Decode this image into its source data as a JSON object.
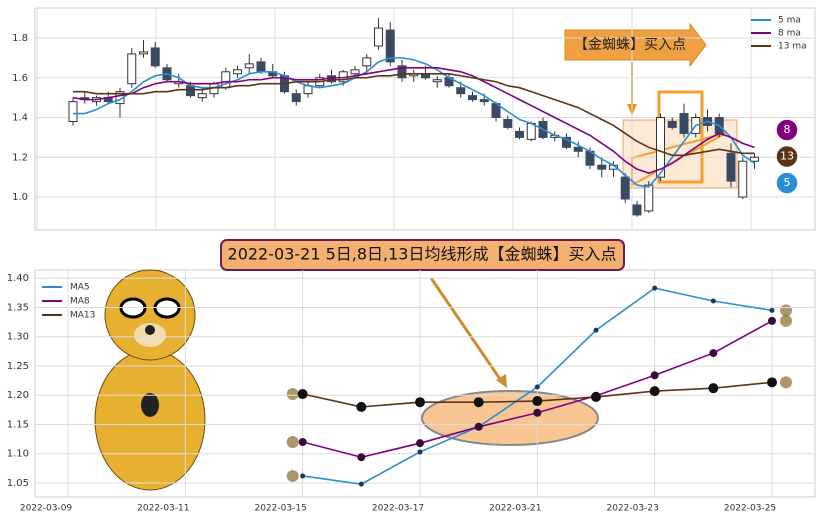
{
  "chart_data": [
    {
      "type": "candlestick",
      "open": [
        1.38,
        1.5,
        1.48,
        1.5,
        1.47,
        1.57,
        1.72,
        1.75,
        1.65,
        1.57,
        1.56,
        1.5,
        1.52,
        1.55,
        1.62,
        1.65,
        1.68,
        1.63,
        1.61,
        1.52,
        1.52,
        1.56,
        1.61,
        1.58,
        1.62,
        1.66,
        1.76,
        1.84,
        1.66,
        1.61,
        1.62,
        1.58,
        1.6,
        1.55,
        1.51,
        1.49,
        1.47,
        1.39,
        1.33,
        1.29,
        1.38,
        1.3,
        1.3,
        1.25,
        1.23,
        1.16,
        1.14,
        1.1,
        0.96,
        0.93,
        1.1,
        1.38,
        1.42,
        1.32,
        1.4,
        1.4,
        1.22,
        1.0,
        1.18
      ],
      "high": [
        1.5,
        1.53,
        1.51,
        1.53,
        1.55,
        1.75,
        1.79,
        1.78,
        1.67,
        1.62,
        1.58,
        1.55,
        1.58,
        1.65,
        1.66,
        1.72,
        1.7,
        1.67,
        1.63,
        1.54,
        1.58,
        1.62,
        1.64,
        1.64,
        1.66,
        1.72,
        1.9,
        1.88,
        1.69,
        1.64,
        1.66,
        1.61,
        1.62,
        1.58,
        1.53,
        1.52,
        1.48,
        1.41,
        1.35,
        1.38,
        1.4,
        1.33,
        1.32,
        1.28,
        1.25,
        1.2,
        1.18,
        1.12,
        0.98,
        1.08,
        1.42,
        1.4,
        1.47,
        1.42,
        1.44,
        1.42,
        1.27,
        1.2,
        1.22
      ],
      "low": [
        1.36,
        1.47,
        1.46,
        1.47,
        1.4,
        1.55,
        1.7,
        1.65,
        1.58,
        1.55,
        1.5,
        1.48,
        1.5,
        1.54,
        1.6,
        1.62,
        1.62,
        1.6,
        1.52,
        1.46,
        1.5,
        1.55,
        1.57,
        1.56,
        1.6,
        1.62,
        1.74,
        1.66,
        1.58,
        1.58,
        1.59,
        1.55,
        1.55,
        1.5,
        1.48,
        1.46,
        1.38,
        1.34,
        1.29,
        1.28,
        1.29,
        1.28,
        1.24,
        1.2,
        1.14,
        1.1,
        1.1,
        0.97,
        0.9,
        0.92,
        1.08,
        1.34,
        1.3,
        1.3,
        1.33,
        1.3,
        1.05,
        0.99,
        1.14
      ],
      "close": [
        1.48,
        1.49,
        1.5,
        1.48,
        1.53,
        1.72,
        1.73,
        1.66,
        1.59,
        1.58,
        1.51,
        1.52,
        1.57,
        1.63,
        1.64,
        1.67,
        1.63,
        1.61,
        1.53,
        1.48,
        1.56,
        1.6,
        1.58,
        1.63,
        1.64,
        1.7,
        1.85,
        1.68,
        1.6,
        1.62,
        1.6,
        1.59,
        1.56,
        1.52,
        1.49,
        1.48,
        1.4,
        1.35,
        1.3,
        1.37,
        1.3,
        1.31,
        1.25,
        1.23,
        1.16,
        1.14,
        1.16,
        0.99,
        0.91,
        1.06,
        1.4,
        1.35,
        1.32,
        1.4,
        1.36,
        1.32,
        1.08,
        1.18,
        1.2
      ],
      "up_color": "#ffffff",
      "down_color": "#3b4a63",
      "series": [
        {
          "name": "5 ma",
          "color": "#2a8fd0",
          "values": [
            1.42,
            1.42,
            1.44,
            1.47,
            1.49,
            1.53,
            1.58,
            1.61,
            1.62,
            1.6,
            1.56,
            1.55,
            1.55,
            1.57,
            1.59,
            1.62,
            1.63,
            1.63,
            1.61,
            1.58,
            1.56,
            1.55,
            1.56,
            1.57,
            1.6,
            1.63,
            1.68,
            1.7,
            1.7,
            1.69,
            1.67,
            1.64,
            1.6,
            1.57,
            1.54,
            1.51,
            1.47,
            1.43,
            1.39,
            1.37,
            1.34,
            1.31,
            1.29,
            1.26,
            1.23,
            1.19,
            1.16,
            1.11,
            1.06,
            1.05,
            1.12,
            1.2,
            1.28,
            1.36,
            1.38,
            1.36,
            1.3,
            1.21,
            1.17
          ]
        },
        {
          "name": "8 ma",
          "color": "#800080",
          "values": [
            1.5,
            1.49,
            1.49,
            1.5,
            1.51,
            1.52,
            1.55,
            1.57,
            1.58,
            1.58,
            1.57,
            1.57,
            1.57,
            1.58,
            1.58,
            1.59,
            1.59,
            1.6,
            1.6,
            1.59,
            1.59,
            1.59,
            1.6,
            1.6,
            1.61,
            1.62,
            1.63,
            1.64,
            1.65,
            1.65,
            1.65,
            1.65,
            1.64,
            1.63,
            1.61,
            1.58,
            1.55,
            1.52,
            1.49,
            1.46,
            1.43,
            1.4,
            1.37,
            1.34,
            1.31,
            1.27,
            1.23,
            1.18,
            1.14,
            1.12,
            1.14,
            1.17,
            1.21,
            1.25,
            1.29,
            1.32,
            1.3,
            1.27,
            1.25
          ]
        },
        {
          "name": "13 ma",
          "color": "#5b3418",
          "values": [
            1.53,
            1.53,
            1.52,
            1.52,
            1.52,
            1.52,
            1.52,
            1.53,
            1.53,
            1.54,
            1.54,
            1.54,
            1.55,
            1.55,
            1.56,
            1.56,
            1.57,
            1.57,
            1.57,
            1.58,
            1.58,
            1.58,
            1.59,
            1.59,
            1.6,
            1.6,
            1.61,
            1.61,
            1.62,
            1.62,
            1.62,
            1.62,
            1.62,
            1.61,
            1.6,
            1.59,
            1.58,
            1.56,
            1.55,
            1.53,
            1.51,
            1.49,
            1.47,
            1.45,
            1.42,
            1.39,
            1.36,
            1.32,
            1.28,
            1.25,
            1.23,
            1.21,
            1.21,
            1.22,
            1.23,
            1.24,
            1.23,
            1.22,
            1.22
          ]
        }
      ],
      "ylim": [
        0.834,
        1.951
      ],
      "yticks": [
        {
          "value": 1,
          "label": "1.0"
        },
        1.2,
        1.4,
        1.6,
        1.8
      ],
      "grid": true,
      "legend": "upper right",
      "annotation": "【金蜘蛛】买入点",
      "badges": [
        "8",
        "13",
        "5"
      ]
    },
    {
      "type": "line",
      "x": [
        "2022-03-15",
        "2022-03-16",
        "2022-03-17",
        "2022-03-18",
        "2022-03-21",
        "2022-03-22",
        "2022-03-23",
        "2022-03-24",
        "2022-03-25"
      ],
      "series": [
        {
          "name": "MA5",
          "color": "#2a8fd0",
          "values": [
            1.062,
            1.048,
            1.103,
            1.146,
            1.214,
            1.311,
            1.383,
            1.361,
            1.345
          ]
        },
        {
          "name": "MA8",
          "color": "#800080",
          "values": [
            1.12,
            1.094,
            1.118,
            1.146,
            1.17,
            1.199,
            1.234,
            1.272,
            1.327
          ]
        },
        {
          "name": "MA13",
          "color": "#5b3418",
          "values": [
            1.202,
            1.18,
            1.188,
            1.188,
            1.19,
            1.197,
            1.207,
            1.212,
            1.222
          ]
        }
      ],
      "xlim": [
        "2022-03-09",
        "2022-03-25"
      ],
      "xticks": [
        "2022-03-09",
        "2022-03-11",
        "2022-03-15",
        "2022-03-17",
        "2022-03-21",
        "2022-03-23",
        "2022-03-25"
      ],
      "ylim": [
        1.026,
        1.414
      ],
      "yticks": [
        {
          "value": 1.4,
          "label": "1.40"
        },
        1.35,
        {
          "value": 1.3,
          "label": "1.30"
        },
        1.25,
        {
          "value": 1.2,
          "label": "1.20"
        },
        1.15,
        {
          "value": 1.1,
          "label": "1.10"
        },
        1.05
      ],
      "grid": true,
      "legend": "upper left",
      "annotation": "2022-03-21 5日,8日,13日均线形成【金蜘蛛】买入点"
    }
  ]
}
